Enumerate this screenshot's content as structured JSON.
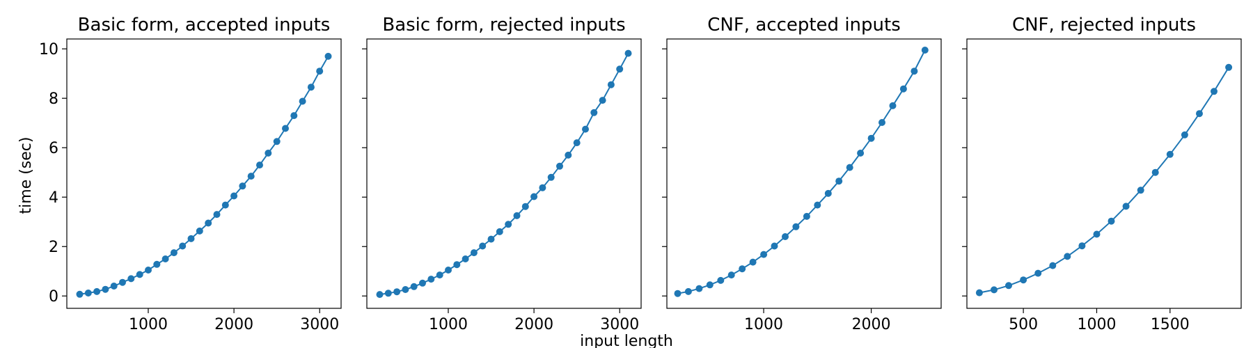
{
  "figure": {
    "xlabel": "input length",
    "ylabel": "time (sec)",
    "color": "#1f77b4"
  },
  "chart_data": [
    {
      "type": "line",
      "title": "Basic form, accepted inputs",
      "xlim": [
        50,
        3250
      ],
      "ylim": [
        -0.5,
        10.4
      ],
      "xticks": [
        1000,
        2000,
        3000
      ],
      "yticks": [
        0,
        2,
        4,
        6,
        8,
        10
      ],
      "marker": "circle",
      "x": [
        200,
        300,
        400,
        500,
        600,
        700,
        800,
        900,
        1000,
        1100,
        1200,
        1300,
        1400,
        1500,
        1600,
        1700,
        1800,
        1900,
        2000,
        2100,
        2200,
        2300,
        2400,
        2500,
        2600,
        2700,
        2800,
        2900,
        3000,
        3100
      ],
      "y": [
        0.07,
        0.12,
        0.18,
        0.27,
        0.4,
        0.55,
        0.7,
        0.87,
        1.05,
        1.28,
        1.5,
        1.75,
        2.02,
        2.32,
        2.63,
        2.95,
        3.3,
        3.68,
        4.05,
        4.45,
        4.85,
        5.3,
        5.78,
        6.25,
        6.78,
        7.3,
        7.88,
        8.45,
        9.1,
        9.7
      ]
    },
    {
      "type": "line",
      "title": "Basic form, rejected inputs",
      "xlim": [
        50,
        3250
      ],
      "ylim": [
        -0.5,
        10.4
      ],
      "xticks": [
        1000,
        2000,
        3000
      ],
      "yticks": [
        0,
        2,
        4,
        6,
        8,
        10
      ],
      "marker": "circle",
      "x": [
        200,
        300,
        400,
        500,
        600,
        700,
        800,
        900,
        1000,
        1100,
        1200,
        1300,
        1400,
        1500,
        1600,
        1700,
        1800,
        1900,
        2000,
        2100,
        2200,
        2300,
        2400,
        2500,
        2600,
        2700,
        2800,
        2900,
        3000,
        3100
      ],
      "y": [
        0.06,
        0.11,
        0.17,
        0.26,
        0.38,
        0.52,
        0.68,
        0.85,
        1.05,
        1.27,
        1.5,
        1.75,
        2.02,
        2.3,
        2.6,
        2.9,
        3.25,
        3.62,
        4.02,
        4.38,
        4.8,
        5.25,
        5.7,
        6.2,
        6.75,
        7.42,
        7.92,
        8.55,
        9.18,
        9.82
      ]
    },
    {
      "type": "line",
      "title": "CNF, accepted inputs",
      "xlim": [
        100,
        2650
      ],
      "ylim": [
        -0.5,
        10.4
      ],
      "xticks": [
        1000,
        2000
      ],
      "yticks": [
        0,
        2,
        4,
        6,
        8,
        10
      ],
      "marker": "circle",
      "x": [
        200,
        300,
        400,
        500,
        600,
        700,
        800,
        900,
        1000,
        1100,
        1200,
        1300,
        1400,
        1500,
        1600,
        1700,
        1800,
        1900,
        2000,
        2100,
        2200,
        2300,
        2400,
        2500
      ],
      "y": [
        0.1,
        0.18,
        0.3,
        0.45,
        0.63,
        0.85,
        1.1,
        1.37,
        1.68,
        2.02,
        2.4,
        2.8,
        3.22,
        3.68,
        4.15,
        4.65,
        5.2,
        5.78,
        6.38,
        7.02,
        7.7,
        8.38,
        9.1,
        9.95
      ]
    },
    {
      "type": "line",
      "title": "CNF, rejected inputs",
      "xlim": [
        115,
        1985
      ],
      "ylim": [
        -0.5,
        10.4
      ],
      "xticks": [
        500,
        1000,
        1500
      ],
      "yticks": [
        0,
        2,
        4,
        6,
        8,
        10
      ],
      "marker": "circle",
      "x": [
        200,
        300,
        400,
        500,
        600,
        700,
        800,
        900,
        1000,
        1100,
        1200,
        1300,
        1400,
        1500,
        1600,
        1700,
        1800,
        1900
      ],
      "y": [
        0.13,
        0.25,
        0.42,
        0.65,
        0.92,
        1.23,
        1.6,
        2.03,
        2.5,
        3.03,
        3.63,
        4.28,
        5.0,
        5.73,
        6.52,
        7.38,
        8.28,
        9.25
      ]
    }
  ]
}
